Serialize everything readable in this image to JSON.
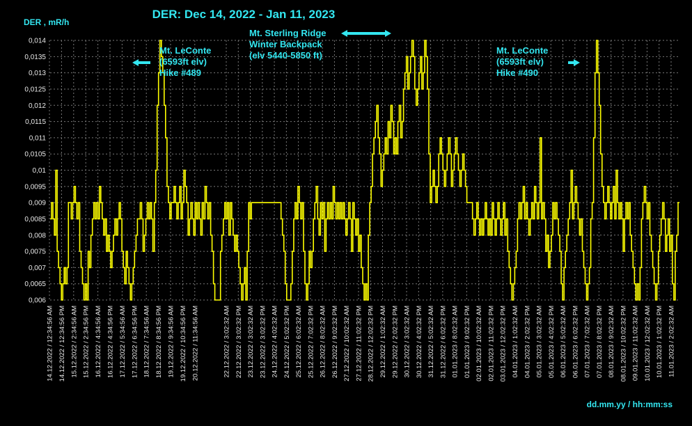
{
  "chart_data": {
    "type": "line",
    "title": "DER: Dec 14, 2022 - Jan 11, 2023",
    "ylabel": "DER , mR/h",
    "xlabel": "dd.mm.yy / hh:mm:ss",
    "ylim": [
      0.006,
      0.014
    ],
    "yticks": [
      "0,006",
      "0,0065",
      "0,007",
      "0,0075",
      "0,008",
      "0,0085",
      "0,009",
      "0,0095",
      "0,01",
      "0,0105",
      "0,011",
      "0,0115",
      "0,012",
      "0,0125",
      "0,013",
      "0,0135",
      "0,014"
    ],
    "grid": true,
    "series_color": "#ffff00",
    "xticks": [
      "14.12.2022 / 12:34:56 AM",
      "14.12.2022 / 12:34:56 PM",
      "15.12.2022 / 2:34:56 AM",
      "15.12.2022 / 2:34:56 PM",
      "16.12.2022 / 4:34:56 AM",
      "16.12.2022 / 4:34:56 PM",
      "17.12.2022 / 5:34:56 AM",
      "17.12.2022 / 6:34:56 PM",
      "18.12.2022 / 7:34:56 AM",
      "18.12.2022 / 8:34:56 PM",
      "19.12.2022 / 9:34:56 AM",
      "19.12.2022 / 10:34:56 PM",
      "20.12.2022 / 11:34:56 AM",
      "22.12.2022 / 3:02:32 AM",
      "22.12.2022 / 3:02:32 PM",
      "23.12.2022 / 3:02:32 AM",
      "23.12.2022 / 3:02:32 PM",
      "24.12.2022 / 4:02:32 AM",
      "24.12.2022 / 5:02:32 PM",
      "25.12.2022 / 6:02:32 AM",
      "25.12.2022 / 7:02:32 PM",
      "26.12.2022 / 8:02:32 AM",
      "26.12.2022 / 9:02:32 PM",
      "27.12.2022 / 10:02:32 AM",
      "27.12.2022 / 11:02:32 PM",
      "28.12.2022 / 12:02:32 PM",
      "29.12.2022 / 1:02:32 AM",
      "29.12.2022 / 2:02:32 PM",
      "30.12.2022 / 3:02:32 AM",
      "30.12.2022 / 4:02:32 PM",
      "31.12.2022 / 5:02:32 AM",
      "31.12.2022 / 6:02:32 PM",
      "01.01.2023 / 8:02:32 AM",
      "01.01.2023 / 9:02:32 PM",
      "02.01.2023 / 10:02:32 AM",
      "02.01.2023 / 11:02:32 PM",
      "03.01.2023 / 12:02:32 PM",
      "04.01.2023 / 1:02:32 AM",
      "04.01.2023 / 2:02:32 PM",
      "05.01.2023 / 3:02:32 AM",
      "05.01.2023 / 4:02:32 PM",
      "06.01.2023 / 5:02:32 AM",
      "06.01.2023 / 6:02:32 PM",
      "07.01.2023 / 7:02:32 AM",
      "07.01.2023 / 8:02:32 PM",
      "08.01.2023 / 9:02:32 AM",
      "08.01.2023 / 10:02:32 PM",
      "09.01.2023 / 11:02:32 AM",
      "10.01.2023 / 12:02:32 AM",
      "10.01.2023 / 1:02:32 PM",
      "11.01.2023 / 2:02:32 AM"
    ],
    "series": [
      {
        "values": [
          0.0085,
          0.009,
          0.0085,
          0.008,
          0.01,
          0.0075,
          0.007,
          0.0065,
          0.006,
          0.0065,
          0.007,
          0.0065,
          0.007,
          0.009,
          0.009,
          0.0085,
          0.009,
          0.0095,
          0.009,
          0.0085,
          0.009,
          0.0075,
          0.007,
          0.0065,
          0.006,
          0.0065,
          0.006,
          0.0075,
          0.007,
          0.008,
          0.0085,
          0.009,
          0.0085,
          0.009,
          0.0085,
          0.0095,
          0.009,
          0.0085,
          0.008,
          0.0085,
          0.0075,
          0.008,
          0.0075,
          0.007,
          0.0075,
          0.008,
          0.0085,
          0.008,
          0.0085,
          0.009,
          0.0085,
          0.0075,
          0.007,
          0.0065,
          0.0075,
          0.007,
          0.0065,
          0.006,
          0.0065,
          0.007,
          0.0075,
          0.008,
          0.0085,
          0.0085,
          0.009,
          0.0085,
          0.0075,
          0.008,
          0.0085,
          0.009,
          0.0085,
          0.009,
          0.0085,
          0.0075,
          0.009,
          0.01,
          0.012,
          0.013,
          0.014,
          0.0135,
          0.013,
          0.012,
          0.011,
          0.0095,
          0.009,
          0.0085,
          0.009,
          0.009,
          0.0095,
          0.009,
          0.0085,
          0.009,
          0.0095,
          0.0085,
          0.009,
          0.01,
          0.0095,
          0.009,
          0.008,
          0.0085,
          0.009,
          0.0085,
          0.008,
          0.009,
          0.0085,
          0.009,
          0.0085,
          0.008,
          0.009,
          0.0085,
          0.0095,
          0.009,
          0.0085,
          0.009,
          0.008,
          0.0075,
          0.0065,
          0.006,
          0.006,
          0.006,
          0.006,
          0.0075,
          0.008,
          0.0085,
          0.009,
          0.0085,
          0.009,
          0.008,
          0.009,
          0.0085,
          0.008,
          0.0075,
          0.008,
          0.0075,
          0.007,
          0.0065,
          0.006,
          0.0065,
          0.007,
          0.006,
          0.0075,
          0.009,
          0.0085,
          0.009,
          0.009,
          0.009,
          0.009,
          0.009,
          0.009,
          0.009,
          0.009,
          0.009,
          0.009,
          0.009,
          0.009,
          0.009,
          0.009,
          0.009,
          0.009,
          0.009,
          0.009,
          0.009,
          0.009,
          0.009,
          0.0085,
          0.008,
          0.0075,
          0.0065,
          0.006,
          0.006,
          0.006,
          0.0065,
          0.0075,
          0.0085,
          0.009,
          0.0085,
          0.0095,
          0.009,
          0.0085,
          0.009,
          0.0075,
          0.0065,
          0.006,
          0.0065,
          0.0075,
          0.007,
          0.0075,
          0.0085,
          0.009,
          0.0095,
          0.0085,
          0.008,
          0.009,
          0.0085,
          0.009,
          0.0075,
          0.0085,
          0.009,
          0.0085,
          0.009,
          0.0085,
          0.0095,
          0.009,
          0.0085,
          0.009,
          0.0085,
          0.009,
          0.0085,
          0.009,
          0.0085,
          0.008,
          0.0085,
          0.009,
          0.0085,
          0.0075,
          0.009,
          0.0085,
          0.008,
          0.0085,
          0.0075,
          0.008,
          0.007,
          0.0065,
          0.006,
          0.0065,
          0.006,
          0.008,
          0.009,
          0.0095,
          0.0105,
          0.011,
          0.0115,
          0.012,
          0.011,
          0.0105,
          0.0095,
          0.01,
          0.0105,
          0.011,
          0.0105,
          0.0115,
          0.011,
          0.012,
          0.0115,
          0.0105,
          0.011,
          0.0105,
          0.0115,
          0.012,
          0.011,
          0.0115,
          0.0125,
          0.013,
          0.0135,
          0.0125,
          0.013,
          0.0135,
          0.014,
          0.0135,
          0.0125,
          0.012,
          0.0125,
          0.013,
          0.0135,
          0.0125,
          0.013,
          0.014,
          0.0135,
          0.0125,
          0.0105,
          0.009,
          0.0095,
          0.01,
          0.0095,
          0.009,
          0.0095,
          0.0105,
          0.011,
          0.0105,
          0.01,
          0.0095,
          0.01,
          0.0105,
          0.011,
          0.0105,
          0.0095,
          0.01,
          0.0105,
          0.011,
          0.0105,
          0.01,
          0.0095,
          0.01,
          0.0105,
          0.01,
          0.0095,
          0.009,
          0.009,
          0.009,
          0.009,
          0.0085,
          0.008,
          0.0085,
          0.009,
          0.0085,
          0.008,
          0.0085,
          0.008,
          0.0085,
          0.009,
          0.0085,
          0.008,
          0.0085,
          0.008,
          0.009,
          0.0085,
          0.008,
          0.0085,
          0.009,
          0.0085,
          0.008,
          0.0085,
          0.009,
          0.008,
          0.0085,
          0.0075,
          0.007,
          0.0065,
          0.006,
          0.0065,
          0.007,
          0.0075,
          0.0085,
          0.009,
          0.0085,
          0.009,
          0.0095,
          0.0085,
          0.009,
          0.0085,
          0.008,
          0.0085,
          0.009,
          0.0085,
          0.0095,
          0.009,
          0.0085,
          0.009,
          0.011,
          0.0085,
          0.009,
          0.0085,
          0.0075,
          0.008,
          0.007,
          0.0075,
          0.008,
          0.009,
          0.0085,
          0.009,
          0.0085,
          0.008,
          0.0075,
          0.0065,
          0.006,
          0.007,
          0.0075,
          0.008,
          0.0085,
          0.009,
          0.01,
          0.0085,
          0.009,
          0.0095,
          0.009,
          0.0085,
          0.008,
          0.0085,
          0.0075,
          0.007,
          0.0065,
          0.006,
          0.0065,
          0.007,
          0.0085,
          0.009,
          0.011,
          0.013,
          0.014,
          0.013,
          0.012,
          0.0105,
          0.0095,
          0.009,
          0.0085,
          0.009,
          0.0095,
          0.009,
          0.0085,
          0.009,
          0.0095,
          0.0085,
          0.01,
          0.009,
          0.0085,
          0.009,
          0.0085,
          0.0075,
          0.0085,
          0.009,
          0.0085,
          0.009,
          0.008,
          0.0075,
          0.007,
          0.0065,
          0.006,
          0.0065,
          0.006,
          0.007,
          0.0085,
          0.009,
          0.0095,
          0.009,
          0.0085,
          0.009,
          0.008,
          0.0075,
          0.007,
          0.0065,
          0.006,
          0.0065,
          0.0075,
          0.008,
          0.0085,
          0.009,
          0.0085,
          0.0075,
          0.008,
          0.0085,
          0.0075,
          0.008,
          0.0065,
          0.006,
          0.0075,
          0.008,
          0.009
        ]
      }
    ],
    "annotations": [
      {
        "lines": [
          "Mt. LeConte",
          "(6593ft elv)",
          "Hike #489"
        ],
        "arrow": "left"
      },
      {
        "lines": [
          "Mt. Sterling Ridge",
          "Winter Backpack",
          "(elv 5440-5850 ft)"
        ],
        "arrow": "both"
      },
      {
        "lines": [
          "Mt. LeConte",
          "(6593ft elv)",
          "Hike #490"
        ],
        "arrow": "right"
      }
    ]
  }
}
